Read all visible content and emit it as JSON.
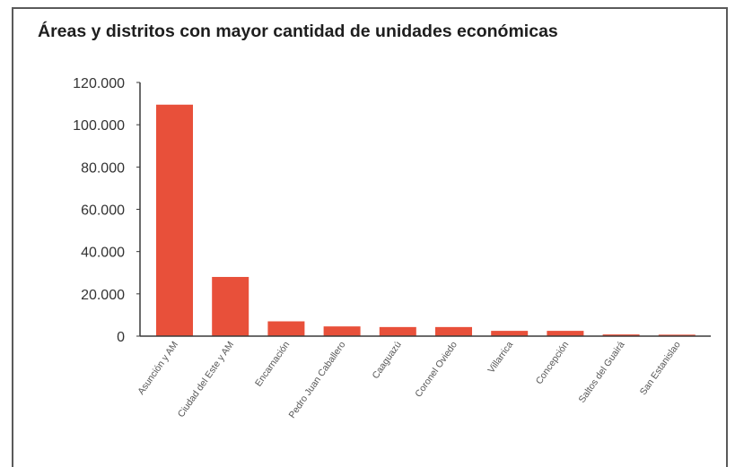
{
  "chart_data": {
    "type": "bar",
    "title": "Áreas y distritos con mayor cantidad de unidades económicas",
    "categories": [
      "Asunción y AM",
      "Ciudad del Este y AM",
      "Encarnación",
      "Pedro Juan Caballero",
      "Caaguazú",
      "Coronel Oviedo",
      "Villarrica",
      "Concepción",
      "Saltos del Guairá",
      "San Estanislao"
    ],
    "values": [
      109500,
      28000,
      7000,
      4600,
      4300,
      4300,
      2500,
      2500,
      800,
      700
    ],
    "yticks": [
      "0",
      "20.000",
      "40.000",
      "60.000",
      "80.000",
      "100.000",
      "120.000"
    ],
    "ylim": [
      0,
      120000
    ],
    "xlabel": "",
    "ylabel": "",
    "bar_color": "#e8503a",
    "grid": false,
    "legend": "none"
  }
}
